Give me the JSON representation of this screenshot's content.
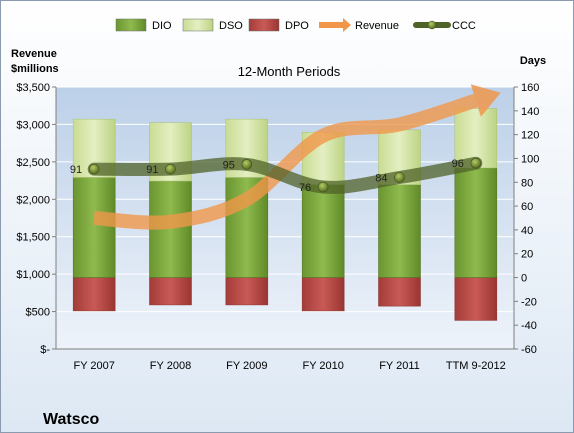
{
  "chart_data": {
    "type": "bar",
    "company": "Watsco",
    "title": "12-Month Periods",
    "left_axis_title": [
      "Revenue",
      "$millions"
    ],
    "right_axis_title": "Days",
    "categories": [
      "FY 2007",
      "FY 2008",
      "FY 2009",
      "FY 2010",
      "FY 2011",
      "TTM 9-2012"
    ],
    "left_axis": {
      "min": 0,
      "max": 3500,
      "step": 500,
      "tick_labels": [
        "$-",
        "$500",
        "$1,000",
        "$1,500",
        "$2,000",
        "$2,500",
        "$3,000",
        "$3,500"
      ]
    },
    "right_axis": {
      "min": -60,
      "max": 160,
      "step": 20
    },
    "legend": {
      "position": "top",
      "items": [
        {
          "name": "DIO",
          "type": "bar",
          "color": "#7aa53a"
        },
        {
          "name": "DSO",
          "type": "bar",
          "color": "#d6e6a8"
        },
        {
          "name": "DPO",
          "type": "bar",
          "color": "#c0504d"
        },
        {
          "name": "Revenue",
          "type": "arrow",
          "color": "#f0974a"
        },
        {
          "name": "CCC",
          "type": "line",
          "color": "#4f6228"
        }
      ]
    },
    "series": [
      {
        "name": "DIO",
        "axis": "right",
        "values": [
          84,
          81,
          84,
          78,
          78,
          92
        ]
      },
      {
        "name": "DSO",
        "axis": "right",
        "values": [
          49,
          49,
          49,
          44,
          46,
          50
        ]
      },
      {
        "name": "DPO",
        "axis": "right",
        "values": [
          -28,
          -23,
          -23,
          -28,
          -24,
          -36
        ]
      },
      {
        "name": "Revenue",
        "axis": "left",
        "values": [
          1750,
          1700,
          2000,
          2850,
          3000,
          3320
        ]
      },
      {
        "name": "CCC",
        "axis": "right",
        "values": [
          91,
          91,
          95,
          76,
          84,
          96
        ]
      }
    ],
    "ccc_labels": [
      "91",
      "91",
      "95",
      "76",
      "84",
      "96"
    ],
    "grid": true
  }
}
